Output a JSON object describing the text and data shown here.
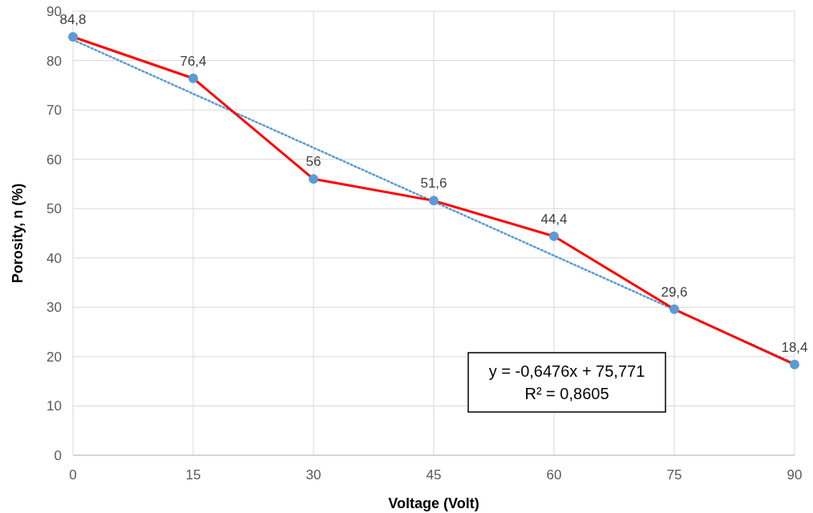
{
  "chart_data": {
    "type": "line",
    "xlabel": "Voltage (Volt)",
    "ylabel": "Porosity, n (%)",
    "x": [
      0,
      15,
      30,
      45,
      60,
      75,
      90
    ],
    "series": [
      {
        "color": "#ff0000",
        "colors": [
          "#5b9bd5",
          "#5b9bd5",
          "#5b9bd5",
          "#5b9bd5",
          "#5b9bd5",
          "#5b9bd5",
          "#5b9bd5"
        ],
        "marker": "circle",
        "line_style": "solid",
        "values": [
          84.8,
          76.4,
          56,
          51.6,
          44.4,
          29.6,
          18.4
        ],
        "value_labels": [
          "84,8",
          "76,4",
          "56",
          "51,6",
          "44,4",
          "29,6",
          "18,4"
        ]
      },
      {
        "color": "#5b9bd5",
        "marker": "none",
        "line_style": "dotted",
        "x": [
          0,
          90
        ],
        "values": [
          84.2,
          18.6
        ]
      }
    ],
    "xlim": [
      0,
      90
    ],
    "xticks": [
      0,
      15,
      30,
      45,
      60,
      75,
      90
    ],
    "ylim": [
      0,
      90
    ],
    "yticks": [
      0,
      10,
      20,
      30,
      40,
      50,
      60,
      70,
      80,
      90
    ],
    "grid": true,
    "annotations": [
      "y = -0,6476x + 75,771",
      "R² = 0,8605"
    ]
  }
}
